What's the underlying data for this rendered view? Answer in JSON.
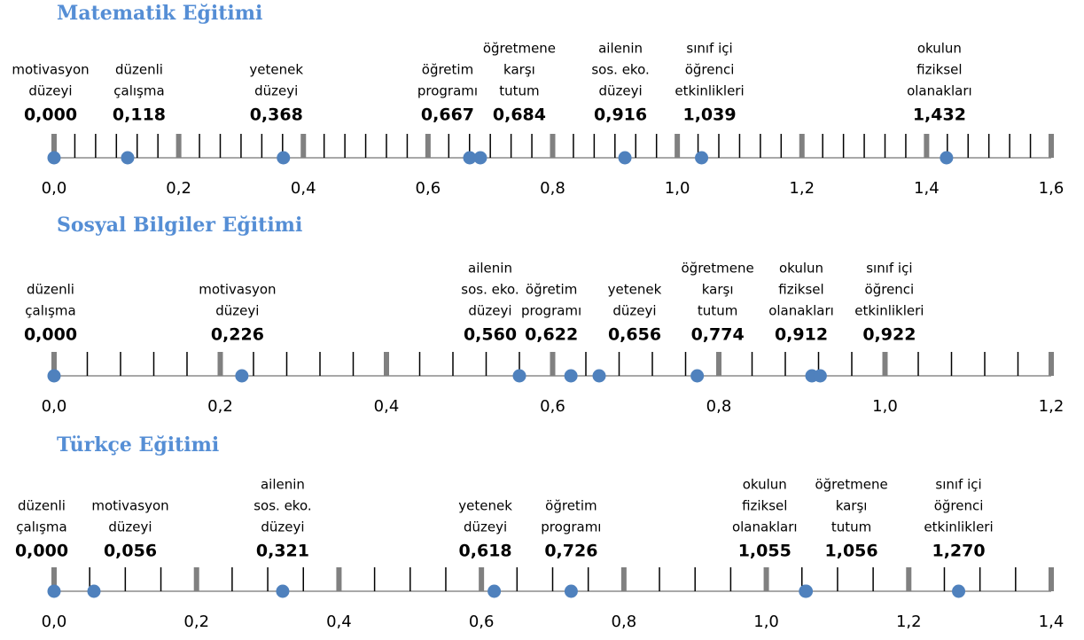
{
  "chart_data": [
    {
      "type": "scatter",
      "title": "Matematik Eğitimi",
      "labels": [
        [
          "motivasyon",
          "düzeyi"
        ],
        [
          "düzenli",
          "çalışma"
        ],
        [
          "yetenek",
          "düzeyi"
        ],
        [
          "öğretim",
          "programı"
        ],
        [
          "öğretmene",
          "karşı",
          "tutum"
        ],
        [
          "ailenin",
          "sos. eko.",
          "düzeyi"
        ],
        [
          "sınıf içi",
          "öğrenci",
          "etkinlikleri"
        ],
        [
          "okulun",
          "fiziksel",
          "olanakları"
        ]
      ],
      "values": [
        0.0,
        0.118,
        0.368,
        0.667,
        0.684,
        0.916,
        1.039,
        1.432
      ],
      "value_labels": [
        "0,000",
        "0,118",
        "0,368",
        "0,667",
        "0,684",
        "0,916",
        "1,039",
        "1,432"
      ],
      "xlim": [
        0,
        1.6
      ],
      "xticks": [
        {
          "value": 0,
          "label": "0,0"
        },
        {
          "value": 0.2,
          "label": "0,2"
        },
        {
          "value": 0.4,
          "label": "0,4"
        },
        {
          "value": 0.6,
          "label": "0,6"
        },
        {
          "value": 0.8,
          "label": "0,8"
        },
        {
          "value": 1.0,
          "label": "1,0"
        },
        {
          "value": 1.2,
          "label": "1,2"
        },
        {
          "value": 1.4,
          "label": "1,4"
        },
        {
          "value": 1.6,
          "label": "1,6"
        }
      ],
      "color": "#4f81bd"
    },
    {
      "type": "scatter",
      "title": "Sosyal Bilgiler Eğitimi",
      "labels": [
        [
          "düzenli",
          "çalışma"
        ],
        [
          "motivasyon",
          "düzeyi"
        ],
        [
          "ailenin",
          "sos. eko.",
          "düzeyi"
        ],
        [
          "öğretim",
          "programı"
        ],
        [
          "yetenek",
          "düzeyi"
        ],
        [
          "öğretmene",
          "karşı",
          "tutum"
        ],
        [
          "okulun",
          "fiziksel",
          "olanakları"
        ],
        [
          "sınıf içi",
          "öğrenci",
          "etkinlikleri"
        ]
      ],
      "values": [
        0.0,
        0.226,
        0.56,
        0.622,
        0.656,
        0.774,
        0.912,
        0.922
      ],
      "value_labels": [
        "0,000",
        "0,226",
        "0,560",
        "0,622",
        "0,656",
        "0,774",
        "0,912",
        "0,922"
      ],
      "xlim": [
        0,
        1.2
      ],
      "xticks": [
        {
          "value": 0,
          "label": "0,0"
        },
        {
          "value": 0.2,
          "label": "0,2"
        },
        {
          "value": 0.4,
          "label": "0,4"
        },
        {
          "value": 0.6,
          "label": "0,6"
        },
        {
          "value": 0.8,
          "label": "0,8"
        },
        {
          "value": 1.0,
          "label": "1,0"
        },
        {
          "value": 1.2,
          "label": "1,2"
        }
      ],
      "color": "#4f81bd"
    },
    {
      "type": "scatter",
      "title": "Türkçe Eğitimi",
      "labels": [
        [
          "düzenli",
          "çalışma"
        ],
        [
          "motivasyon",
          "düzeyi"
        ],
        [
          "ailenin",
          "sos. eko.",
          "düzeyi"
        ],
        [
          "yetenek",
          "düzeyi"
        ],
        [
          "öğretim",
          "programı"
        ],
        [
          "okulun",
          "fiziksel",
          "olanakları"
        ],
        [
          "öğretmene",
          "karşı",
          "tutum"
        ],
        [
          "sınıf içi",
          "öğrenci",
          "etkinlikleri"
        ]
      ],
      "values": [
        0.0,
        0.056,
        0.321,
        0.618,
        0.726,
        1.055,
        1.056,
        1.27
      ],
      "value_labels": [
        "0,000",
        "0,056",
        "0,321",
        "0,618",
        "0,726",
        "1,055",
        "1,056",
        "1,270"
      ],
      "xlim": [
        0,
        1.4
      ],
      "xticks": [
        {
          "value": 0,
          "label": "0,0"
        },
        {
          "value": 0.2,
          "label": "0,2"
        },
        {
          "value": 0.4,
          "label": "0,4"
        },
        {
          "value": 0.6,
          "label": "0,6"
        },
        {
          "value": 0.8,
          "label": "0,8"
        },
        {
          "value": 1.0,
          "label": "1,0"
        },
        {
          "value": 1.2,
          "label": "1,2"
        },
        {
          "value": 1.4,
          "label": "1,4"
        }
      ],
      "color": "#4f81bd"
    }
  ]
}
